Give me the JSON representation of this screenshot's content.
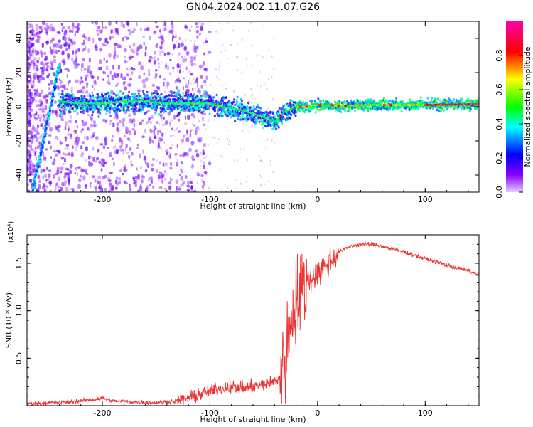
{
  "title": "GN04.2024.002.11.07.G26",
  "chart_data": [
    {
      "type": "heatmap",
      "xlabel": "Height of straight line (km)",
      "ylabel": "Frequency (Hz)",
      "xlim": [
        -270,
        150
      ],
      "ylim": [
        -50,
        50
      ],
      "x_ticks": [
        -200,
        -100,
        0,
        100
      ],
      "y_ticks": [
        -40,
        -20,
        0,
        20,
        40
      ],
      "colorbar": {
        "label": "Normalized spectral amplitude",
        "range": [
          0,
          1
        ],
        "ticks": [
          "0.0",
          "0.2",
          "0.4",
          "0.6",
          "0.8"
        ],
        "colors": [
          "#e6ccff",
          "#8800ff",
          "#0000ff",
          "#00ffff",
          "#00ff00",
          "#ffff00",
          "#ff0000",
          "#ff00aa"
        ]
      },
      "ridge": {
        "x": [
          -240,
          -220,
          -200,
          -180,
          -160,
          -140,
          -120,
          -100,
          -90,
          -80,
          -70,
          -60,
          -50,
          -40,
          -30,
          -20,
          -10,
          0,
          20,
          50,
          100,
          150
        ],
        "y": [
          3,
          2,
          2,
          3,
          3,
          2,
          2,
          2,
          0,
          -1,
          -2,
          -4,
          -6,
          -9,
          -3,
          0,
          0,
          1,
          0.5,
          1,
          1,
          1.5
        ]
      },
      "diagonal_streak": {
        "x": [
          -265,
          -240
        ],
        "y": [
          -50,
          25
        ]
      }
    },
    {
      "type": "line",
      "xlabel": "Height of straight line (km)",
      "ylabel": "SNR (10 * v/v)",
      "y_multiplier": "(x10⁴)",
      "xlim": [
        -270,
        150
      ],
      "ylim": [
        0,
        1.8
      ],
      "x_ticks": [
        -200,
        -100,
        0,
        100
      ],
      "y_ticks": [
        0.5,
        1.0,
        1.5
      ],
      "color": "#ee3333",
      "series": [
        {
          "x": [
            -270,
            -250,
            -230,
            -210,
            -200,
            -190,
            -170,
            -150,
            -130,
            -120,
            -110,
            -100,
            -90,
            -80,
            -70,
            -60,
            -50,
            -40,
            -35,
            -30,
            -25,
            -20,
            -15,
            -10,
            -5,
            0,
            10,
            20,
            30,
            40,
            50,
            60,
            80,
            100,
            120,
            140,
            150
          ],
          "y": [
            0.02,
            0.03,
            0.04,
            0.06,
            0.08,
            0.05,
            0.04,
            0.03,
            0.05,
            0.08,
            0.12,
            0.15,
            0.18,
            0.2,
            0.18,
            0.2,
            0.22,
            0.25,
            0.3,
            0.5,
            0.9,
            1.1,
            1.2,
            1.3,
            1.35,
            1.4,
            1.5,
            1.62,
            1.68,
            1.7,
            1.7,
            1.68,
            1.62,
            1.55,
            1.48,
            1.42,
            1.38
          ]
        }
      ]
    }
  ]
}
